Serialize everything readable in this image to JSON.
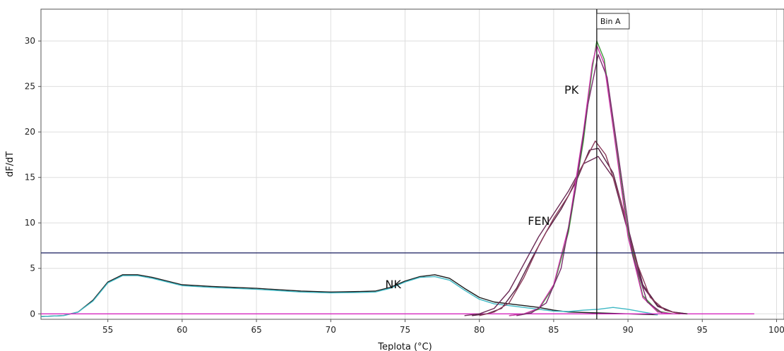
{
  "chart_data": {
    "type": "line",
    "xlabel": "Teplota (°C)",
    "ylabel": "dF/dT",
    "xlim": [
      50.5,
      100.5
    ],
    "ylim": [
      -0.6,
      33.5
    ],
    "xticks": [
      55,
      60,
      65,
      70,
      75,
      80,
      85,
      90,
      95,
      100
    ],
    "yticks": [
      0,
      5,
      10,
      15,
      20,
      25,
      30
    ],
    "grid": true,
    "threshold_y": 6.7,
    "bin": {
      "label": "Bin A",
      "x": 87.9
    },
    "annotations": [
      {
        "text": "PK",
        "x": 86.2,
        "y": 24.2
      },
      {
        "text": "FEN",
        "x": 84.0,
        "y": 9.8
      },
      {
        "text": "NK",
        "x": 74.2,
        "y": 2.8
      }
    ],
    "series": [
      {
        "color": "#1a1a1a",
        "points": [
          [
            50.5,
            -0.3
          ],
          [
            52,
            -0.2
          ],
          [
            53,
            0.2
          ],
          [
            54,
            1.5
          ],
          [
            55,
            3.5
          ],
          [
            56,
            4.3
          ],
          [
            57,
            4.3
          ],
          [
            58,
            4.0
          ],
          [
            59,
            3.6
          ],
          [
            60,
            3.2
          ],
          [
            62,
            3.0
          ],
          [
            65,
            2.8
          ],
          [
            68,
            2.5
          ],
          [
            70,
            2.4
          ],
          [
            72,
            2.45
          ],
          [
            73,
            2.5
          ],
          [
            74,
            2.9
          ],
          [
            75,
            3.6
          ],
          [
            76,
            4.1
          ],
          [
            77,
            4.3
          ],
          [
            78,
            3.9
          ],
          [
            79,
            2.8
          ],
          [
            80,
            1.8
          ],
          [
            81,
            1.3
          ],
          [
            82,
            1.1
          ],
          [
            83,
            0.9
          ],
          [
            84,
            0.7
          ],
          [
            85,
            0.4
          ],
          [
            86,
            0.2
          ],
          [
            88,
            0.1
          ],
          [
            90,
            0.0
          ],
          [
            92,
            -0.1
          ]
        ]
      },
      {
        "color": "#3fb8c4",
        "points": [
          [
            50.5,
            -0.3
          ],
          [
            52,
            -0.2
          ],
          [
            53,
            0.2
          ],
          [
            54,
            1.4
          ],
          [
            55,
            3.4
          ],
          [
            56,
            4.2
          ],
          [
            57,
            4.2
          ],
          [
            58,
            3.9
          ],
          [
            59,
            3.5
          ],
          [
            60,
            3.1
          ],
          [
            62,
            2.9
          ],
          [
            65,
            2.7
          ],
          [
            68,
            2.4
          ],
          [
            70,
            2.3
          ],
          [
            72,
            2.35
          ],
          [
            73,
            2.4
          ],
          [
            74,
            2.8
          ],
          [
            75,
            3.5
          ],
          [
            76,
            4.0
          ],
          [
            77,
            4.1
          ],
          [
            78,
            3.7
          ],
          [
            79,
            2.6
          ],
          [
            80,
            1.6
          ],
          [
            81,
            1.1
          ],
          [
            82,
            0.9
          ],
          [
            83,
            0.7
          ],
          [
            84,
            0.5
          ],
          [
            85,
            0.3
          ],
          [
            86,
            0.25
          ],
          [
            87,
            0.4
          ],
          [
            88,
            0.5
          ],
          [
            89,
            0.7
          ],
          [
            90,
            0.5
          ],
          [
            91,
            0.2
          ],
          [
            92,
            -0.1
          ]
        ]
      },
      {
        "color": "#d62ac0",
        "points": [
          [
            50.5,
            0.0
          ],
          [
            60,
            0.0
          ],
          [
            70,
            0.0
          ],
          [
            80,
            0.0
          ],
          [
            90,
            0.0
          ],
          [
            98.5,
            0.0
          ]
        ]
      },
      {
        "color": "#6b2a55",
        "points": [
          [
            79,
            -0.2
          ],
          [
            80,
            0.0
          ],
          [
            81,
            0.6
          ],
          [
            82,
            2.5
          ],
          [
            83,
            5.5
          ],
          [
            84,
            8.5
          ],
          [
            85,
            11.0
          ],
          [
            86,
            13.5
          ],
          [
            87,
            16.5
          ],
          [
            88,
            17.3
          ],
          [
            89,
            15.0
          ],
          [
            90,
            9.0
          ],
          [
            91,
            3.0
          ],
          [
            92,
            0.8
          ],
          [
            93,
            0.2
          ],
          [
            94,
            0.0
          ]
        ]
      },
      {
        "color": "#552244",
        "points": [
          [
            79.5,
            -0.2
          ],
          [
            80.5,
            0.0
          ],
          [
            81.5,
            0.6
          ],
          [
            82.5,
            2.8
          ],
          [
            83.5,
            6.0
          ],
          [
            84.5,
            9.0
          ],
          [
            85.5,
            11.5
          ],
          [
            86.5,
            14.5
          ],
          [
            87.4,
            18.0
          ],
          [
            88,
            18.2
          ],
          [
            89,
            15.5
          ],
          [
            90,
            9.5
          ],
          [
            91,
            3.2
          ],
          [
            92,
            0.9
          ],
          [
            93,
            0.2
          ],
          [
            94,
            0.0
          ]
        ]
      },
      {
        "color": "#8a3a5a",
        "points": [
          [
            80,
            -0.2
          ],
          [
            81,
            0.2
          ],
          [
            82,
            1.2
          ],
          [
            83,
            4.0
          ],
          [
            84,
            7.5
          ],
          [
            85,
            10.5
          ],
          [
            86,
            13.0
          ],
          [
            87,
            16.5
          ],
          [
            87.8,
            19.0
          ],
          [
            88.5,
            17.5
          ],
          [
            89.5,
            12.5
          ],
          [
            90.5,
            6.0
          ],
          [
            91.5,
            1.8
          ],
          [
            92.5,
            0.4
          ],
          [
            93.5,
            0.0
          ]
        ]
      },
      {
        "color": "#3f9a3a",
        "points": [
          [
            82,
            -0.2
          ],
          [
            83,
            0.0
          ],
          [
            84,
            0.5
          ],
          [
            85,
            3.0
          ],
          [
            86,
            9.0
          ],
          [
            87,
            19.0
          ],
          [
            87.6,
            27.0
          ],
          [
            87.9,
            30.0
          ],
          [
            88.4,
            28.0
          ],
          [
            89,
            21.0
          ],
          [
            90,
            9.0
          ],
          [
            91,
            2.0
          ],
          [
            92,
            0.3
          ],
          [
            93,
            0.0
          ]
        ]
      },
      {
        "color": "#cc33aa",
        "points": [
          [
            82,
            -0.2
          ],
          [
            83,
            0.0
          ],
          [
            84,
            0.6
          ],
          [
            85,
            3.2
          ],
          [
            86,
            9.5
          ],
          [
            87,
            20.0
          ],
          [
            87.6,
            27.5
          ],
          [
            87.9,
            29.5
          ],
          [
            88.4,
            27.5
          ],
          [
            89,
            20.5
          ],
          [
            90,
            8.5
          ],
          [
            91,
            1.8
          ],
          [
            92,
            0.2
          ],
          [
            93,
            0.0
          ]
        ]
      },
      {
        "color": "#7a2e6e",
        "points": [
          [
            82.5,
            -0.2
          ],
          [
            83.5,
            0.1
          ],
          [
            84.5,
            1.2
          ],
          [
            85.5,
            5.0
          ],
          [
            86.5,
            14.0
          ],
          [
            87.3,
            23.0
          ],
          [
            88,
            28.5
          ],
          [
            88.6,
            26.0
          ],
          [
            89.3,
            18.0
          ],
          [
            90.3,
            6.5
          ],
          [
            91.3,
            1.3
          ],
          [
            92.3,
            0.1
          ]
        ]
      }
    ]
  }
}
